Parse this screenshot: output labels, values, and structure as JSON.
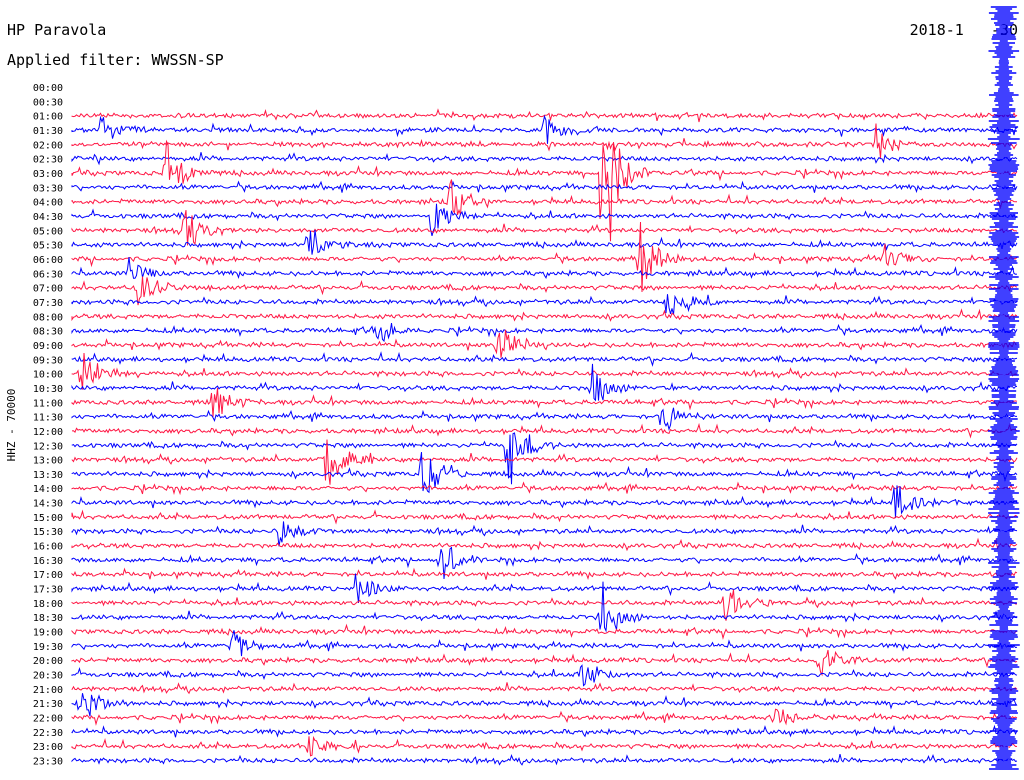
{
  "header": {
    "station": "HP Paravola",
    "filter_label": "Applied filter:",
    "filter_value": "WWSSN-SP",
    "date": "2018-1   -30"
  },
  "chart_data": {
    "type": "helicorder",
    "title": "HP Paravola",
    "filter": "WWSSN-SP",
    "date": "2018-1   -30",
    "ylabel": "HHZ - 70000",
    "colors": {
      "even_rows": "#ff1744",
      "odd_rows": "#0000ff"
    },
    "row_labels": [
      "00:00",
      "00:30",
      "01:00",
      "01:30",
      "02:00",
      "02:30",
      "03:00",
      "03:30",
      "04:00",
      "04:30",
      "05:00",
      "05:30",
      "06:00",
      "06:30",
      "07:00",
      "07:30",
      "08:00",
      "08:30",
      "09:00",
      "09:30",
      "10:00",
      "10:30",
      "11:00",
      "11:30",
      "12:00",
      "12:30",
      "13:00",
      "13:30",
      "14:00",
      "14:30",
      "15:00",
      "15:30",
      "16:00",
      "16:30",
      "17:00",
      "17:30",
      "18:00",
      "18:30",
      "19:00",
      "19:30",
      "20:00",
      "20:30",
      "21:00",
      "21:30",
      "22:00",
      "22:30",
      "23:00",
      "23:30"
    ],
    "trace_start_row": 2,
    "bursts": [
      {
        "row": 3,
        "pos": 0.03,
        "amp": 20
      },
      {
        "row": 3,
        "pos": 0.5,
        "amp": 30
      },
      {
        "row": 4,
        "pos": 0.85,
        "amp": 22
      },
      {
        "row": 6,
        "pos": 0.1,
        "amp": 50
      },
      {
        "row": 6,
        "pos": 0.56,
        "amp": 160
      },
      {
        "row": 8,
        "pos": 0.4,
        "amp": 26
      },
      {
        "row": 9,
        "pos": 0.38,
        "amp": 30
      },
      {
        "row": 10,
        "pos": 0.12,
        "amp": 28
      },
      {
        "row": 11,
        "pos": 0.25,
        "amp": 24
      },
      {
        "row": 12,
        "pos": 0.6,
        "amp": 50
      },
      {
        "row": 12,
        "pos": 0.86,
        "amp": 20
      },
      {
        "row": 13,
        "pos": 0.06,
        "amp": 20
      },
      {
        "row": 14,
        "pos": 0.07,
        "amp": 30
      },
      {
        "row": 15,
        "pos": 0.63,
        "amp": 24
      },
      {
        "row": 17,
        "pos": 0.32,
        "amp": 20
      },
      {
        "row": 18,
        "pos": 0.45,
        "amp": 28
      },
      {
        "row": 20,
        "pos": 0.01,
        "amp": 40
      },
      {
        "row": 21,
        "pos": 0.55,
        "amp": 26
      },
      {
        "row": 22,
        "pos": 0.15,
        "amp": 22
      },
      {
        "row": 23,
        "pos": 0.62,
        "amp": 32
      },
      {
        "row": 25,
        "pos": 0.46,
        "amp": 60
      },
      {
        "row": 26,
        "pos": 0.27,
        "amp": 48
      },
      {
        "row": 27,
        "pos": 0.37,
        "amp": 40
      },
      {
        "row": 29,
        "pos": 0.87,
        "amp": 24
      },
      {
        "row": 31,
        "pos": 0.22,
        "amp": 20
      },
      {
        "row": 33,
        "pos": 0.39,
        "amp": 34
      },
      {
        "row": 35,
        "pos": 0.3,
        "amp": 26
      },
      {
        "row": 36,
        "pos": 0.69,
        "amp": 26
      },
      {
        "row": 37,
        "pos": 0.56,
        "amp": 36
      },
      {
        "row": 39,
        "pos": 0.17,
        "amp": 22
      },
      {
        "row": 40,
        "pos": 0.79,
        "amp": 24
      },
      {
        "row": 41,
        "pos": 0.54,
        "amp": 20
      },
      {
        "row": 43,
        "pos": 0.01,
        "amp": 28
      },
      {
        "row": 44,
        "pos": 0.74,
        "amp": 20
      },
      {
        "row": 46,
        "pos": 0.25,
        "amp": 18
      }
    ],
    "saturated_columns": [
      {
        "pos": 0.985,
        "from_row": 0,
        "to_row": 47
      }
    ]
  }
}
